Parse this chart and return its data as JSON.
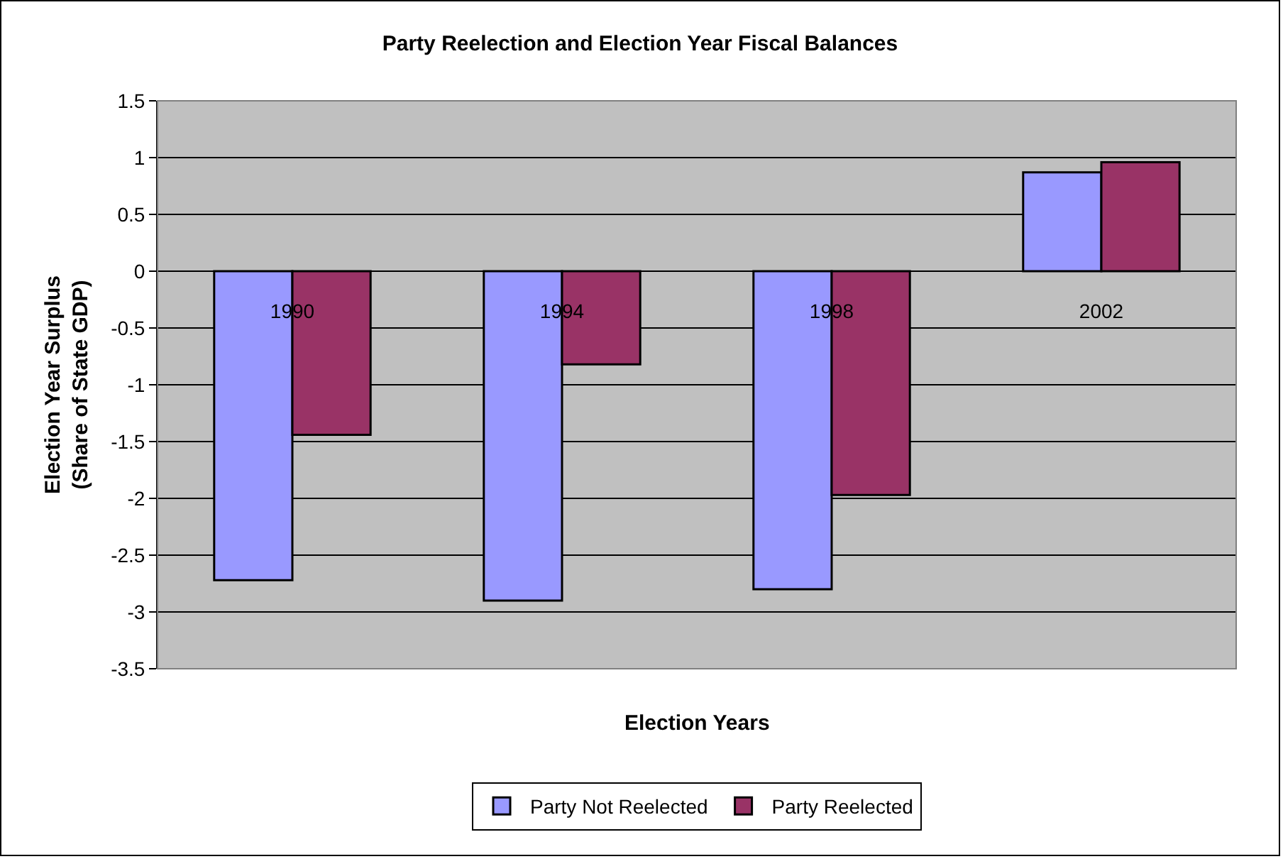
{
  "chart_data": {
    "type": "bar",
    "title": "Party Reelection and Election Year Fiscal Balances",
    "xlabel": "Election Years",
    "ylabel": "Election Year Surplus\n(Share of State GDP)",
    "categories": [
      "1990",
      "1994",
      "1998",
      "2002"
    ],
    "series": [
      {
        "name": "Party Not Reelected",
        "color": "#9999ff",
        "values": [
          -2.72,
          -2.9,
          -2.8,
          0.87
        ]
      },
      {
        "name": "Party Reelected",
        "color": "#993366",
        "values": [
          -1.44,
          -0.82,
          -1.97,
          0.96
        ]
      }
    ],
    "ylim": [
      -3.5,
      1.5
    ],
    "yticks": [
      -3.5,
      -3,
      -2.5,
      -2,
      -1.5,
      -1,
      -0.5,
      0,
      0.5,
      1,
      1.5
    ],
    "grid": "y",
    "legend": "bottom"
  }
}
